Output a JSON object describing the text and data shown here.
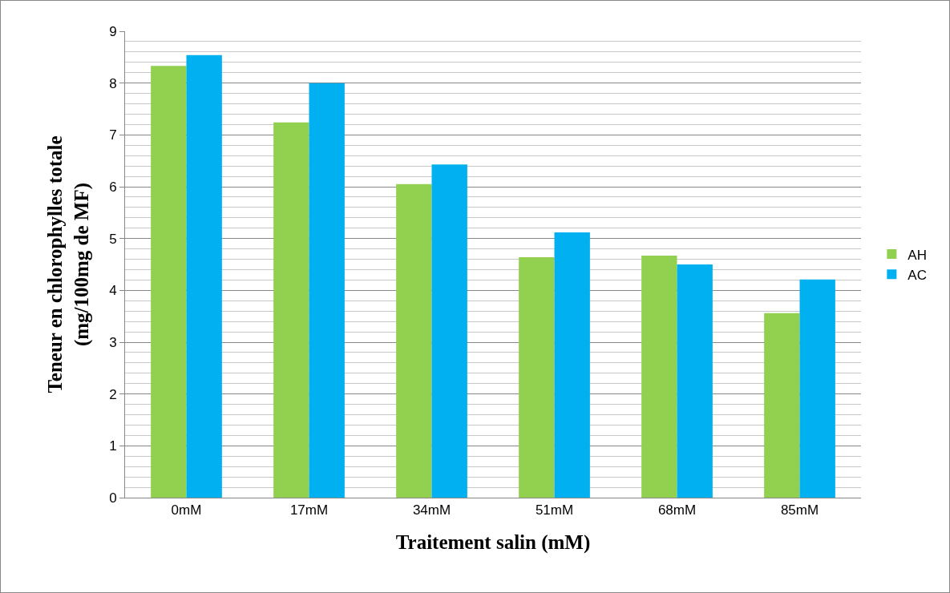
{
  "chart_data": {
    "type": "bar",
    "xlabel": "Traitement salin (mM)",
    "ylabel": "Teneur en chlorophylles totale\n(mg/100mg de MF)",
    "categories": [
      "0mM",
      "17mM",
      "34mM",
      "51mM",
      "68mM",
      "85mM"
    ],
    "series": [
      {
        "name": "AH",
        "color": "#92d050",
        "values": [
          8.33,
          7.24,
          6.05,
          4.64,
          4.67,
          3.56
        ]
      },
      {
        "name": "AC",
        "color": "#00b0f0",
        "values": [
          8.54,
          8.0,
          6.43,
          5.12,
          4.5,
          4.21
        ]
      }
    ],
    "ylim": [
      0,
      9
    ],
    "yticks": [
      0,
      1,
      2,
      3,
      4,
      5,
      6,
      7,
      8,
      9
    ],
    "grid": "y",
    "legend": "right"
  }
}
